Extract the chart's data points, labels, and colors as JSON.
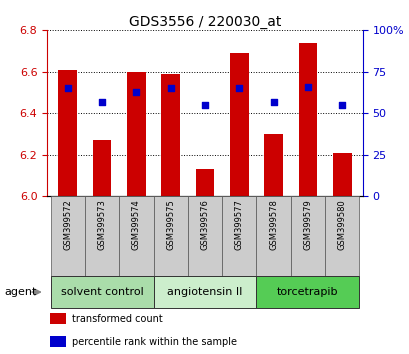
{
  "title": "GDS3556 / 220030_at",
  "samples": [
    "GSM399572",
    "GSM399573",
    "GSM399574",
    "GSM399575",
    "GSM399576",
    "GSM399577",
    "GSM399578",
    "GSM399579",
    "GSM399580"
  ],
  "bar_values": [
    6.61,
    6.27,
    6.6,
    6.59,
    6.13,
    6.69,
    6.3,
    6.74,
    6.21
  ],
  "bar_base": 6.0,
  "percentile_pct": [
    65,
    57,
    63,
    65,
    55,
    65,
    57,
    66,
    55
  ],
  "ylim": [
    6.0,
    6.8
  ],
  "y2lim": [
    0,
    100
  ],
  "yticks": [
    6.0,
    6.2,
    6.4,
    6.6,
    6.8
  ],
  "y2ticks": [
    0,
    25,
    50,
    75,
    100
  ],
  "bar_color": "#cc0000",
  "dot_color": "#0000cc",
  "bar_width": 0.55,
  "groups": [
    {
      "label": "solvent control",
      "indices": [
        0,
        1,
        2
      ],
      "color": "#aaddaa"
    },
    {
      "label": "angiotensin II",
      "indices": [
        3,
        4,
        5
      ],
      "color": "#cceecc"
    },
    {
      "label": "torcetrapib",
      "indices": [
        6,
        7,
        8
      ],
      "color": "#55cc55"
    }
  ],
  "agent_label": "agent",
  "legend_bar": "transformed count",
  "legend_dot": "percentile rank within the sample",
  "tick_color_left": "#cc0000",
  "tick_color_right": "#0000cc",
  "label_bg": "#cccccc",
  "title_fontsize": 10,
  "tick_fontsize": 8,
  "sample_fontsize": 6,
  "group_fontsize": 8
}
